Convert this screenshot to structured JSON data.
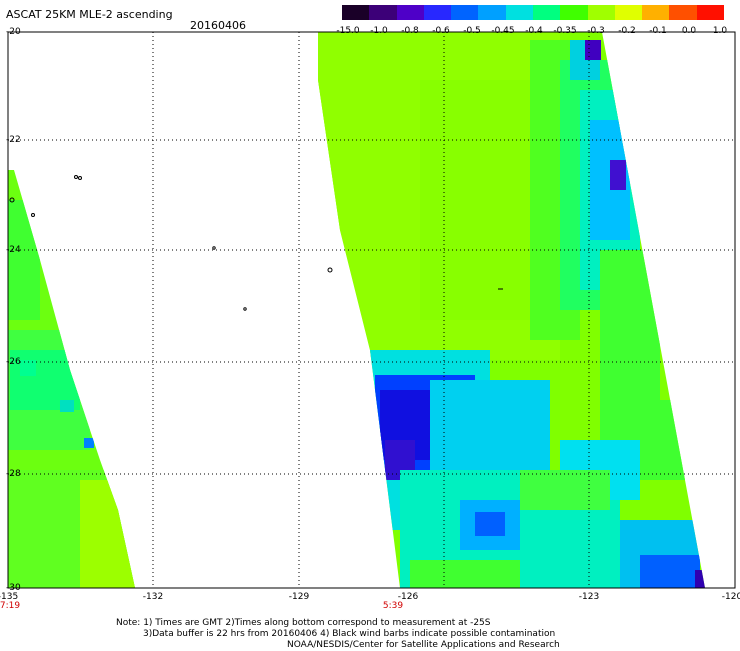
{
  "header": {
    "title": "ASCAT 25KM MLE-2 ascending",
    "date": "20160406"
  },
  "colorbar": {
    "labels": [
      "-15.0",
      "-1.0",
      "-0.8",
      "-0.6",
      "-0.5",
      "-0.45",
      "-0.4",
      "-0.35",
      "-0.3",
      "-0.2",
      "-0.1",
      "0.0",
      "1.0"
    ],
    "colors": [
      "#1a0028",
      "#3c0078",
      "#4e00c8",
      "#2828ff",
      "#0064ff",
      "#00a0ff",
      "#00e0e0",
      "#00ff80",
      "#40ff00",
      "#a0ff00",
      "#e0ff00",
      "#ffb000",
      "#ff5000",
      "#ff1000"
    ]
  },
  "axes": {
    "y_ticks": [
      "-20",
      "-22",
      "-24",
      "-26",
      "-28",
      "-30"
    ],
    "x_ticks": [
      "-135",
      "-132",
      "-129",
      "-126",
      "-123",
      "-120"
    ],
    "times": [
      "7:19",
      "5:39"
    ]
  },
  "notes": {
    "line1": "Note: 1) Times are GMT 2)Times along bottom correspond to measurement at -25S",
    "line2": "3)Data buffer is 22 hrs from 20160406 4) Black wind barbs indicate possible contamination",
    "line3": "NOAA/NESDIS/Center for Satellite Applications and Research"
  },
  "map_colors": {
    "green_base": "#80ff00",
    "green_light": "#9cff00",
    "green_mid": "#40ff20",
    "cyan": "#00f0e0",
    "blue": "#0050ff",
    "deep_blue": "#1810e0",
    "purple": "#4000c0",
    "grid": "#000000"
  }
}
